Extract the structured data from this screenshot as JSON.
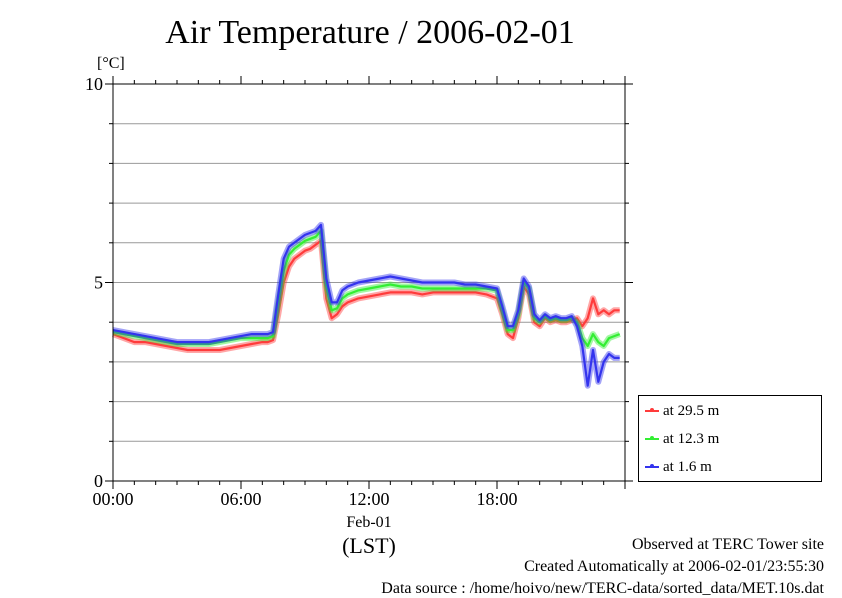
{
  "title": "Air Temperature / 2006-02-01",
  "chart_data": {
    "type": "line",
    "y_unit": "[°C]",
    "ylim": [
      0,
      10
    ],
    "y_ticks": [
      0,
      5,
      10
    ],
    "xlim": [
      0,
      24
    ],
    "x_ticks": [
      {
        "value": 0,
        "label": "00:00"
      },
      {
        "value": 6,
        "label": "06:00"
      },
      {
        "value": 12,
        "label": "12:00"
      },
      {
        "value": 18,
        "label": "18:00"
      }
    ],
    "x_date_label": "Feb-01",
    "xlabel": "(LST)",
    "grid": true,
    "legend_placement": "bottom-right, outside plot",
    "x": [
      0,
      0.5,
      1,
      1.5,
      2,
      2.5,
      3,
      3.5,
      4,
      4.5,
      5,
      5.5,
      6,
      6.5,
      7,
      7.25,
      7.5,
      7.75,
      8,
      8.25,
      8.5,
      8.75,
      9,
      9.25,
      9.5,
      9.75,
      10,
      10.25,
      10.5,
      10.75,
      11,
      11.5,
      12,
      12.5,
      13,
      13.5,
      14,
      14.5,
      15,
      15.5,
      16,
      16.5,
      17,
      17.5,
      18,
      18.25,
      18.5,
      18.75,
      19,
      19.25,
      19.5,
      19.75,
      20,
      20.25,
      20.5,
      20.75,
      21,
      21.25,
      21.5,
      21.75,
      22,
      22.25,
      22.5,
      22.75,
      23,
      23.25,
      23.5,
      23.75
    ],
    "series": [
      {
        "name": "at 29.5 m",
        "color": "#ff3b3b",
        "values": [
          3.7,
          3.6,
          3.5,
          3.5,
          3.45,
          3.4,
          3.35,
          3.3,
          3.3,
          3.3,
          3.3,
          3.35,
          3.4,
          3.45,
          3.5,
          3.5,
          3.55,
          4.2,
          5.0,
          5.4,
          5.6,
          5.7,
          5.8,
          5.85,
          5.95,
          6.05,
          4.6,
          4.1,
          4.2,
          4.4,
          4.5,
          4.6,
          4.65,
          4.7,
          4.75,
          4.75,
          4.75,
          4.7,
          4.75,
          4.75,
          4.75,
          4.75,
          4.75,
          4.7,
          4.6,
          4.2,
          3.7,
          3.6,
          4.1,
          4.9,
          4.7,
          4.0,
          3.9,
          4.1,
          4.0,
          4.05,
          4.0,
          4.0,
          4.05,
          4.1,
          3.9,
          4.1,
          4.6,
          4.2,
          4.3,
          4.2,
          4.3,
          4.3
        ]
      },
      {
        "name": "at 12.3 m",
        "color": "#33ee33",
        "values": [
          3.75,
          3.7,
          3.65,
          3.6,
          3.55,
          3.5,
          3.45,
          3.45,
          3.45,
          3.45,
          3.5,
          3.55,
          3.6,
          3.6,
          3.6,
          3.6,
          3.65,
          4.5,
          5.3,
          5.7,
          5.85,
          5.95,
          6.05,
          6.1,
          6.15,
          6.3,
          4.9,
          4.3,
          4.35,
          4.6,
          4.7,
          4.8,
          4.85,
          4.9,
          4.95,
          4.9,
          4.9,
          4.85,
          4.85,
          4.85,
          4.85,
          4.85,
          4.85,
          4.85,
          4.8,
          4.3,
          3.8,
          3.8,
          4.2,
          5.0,
          4.85,
          4.1,
          4.0,
          4.15,
          4.05,
          4.1,
          4.05,
          4.05,
          4.1,
          4.0,
          3.6,
          3.4,
          3.7,
          3.5,
          3.4,
          3.6,
          3.65,
          3.7
        ]
      },
      {
        "name": "at 1.6 m",
        "color": "#3333ee",
        "values": [
          3.8,
          3.75,
          3.7,
          3.65,
          3.6,
          3.55,
          3.5,
          3.5,
          3.5,
          3.5,
          3.55,
          3.6,
          3.65,
          3.7,
          3.7,
          3.7,
          3.75,
          4.7,
          5.6,
          5.9,
          6.0,
          6.1,
          6.2,
          6.25,
          6.3,
          6.45,
          5.1,
          4.5,
          4.5,
          4.8,
          4.9,
          5.0,
          5.05,
          5.1,
          5.15,
          5.1,
          5.05,
          5.0,
          5.0,
          5.0,
          5.0,
          4.95,
          4.95,
          4.9,
          4.85,
          4.4,
          3.9,
          3.9,
          4.3,
          5.1,
          4.9,
          4.2,
          4.05,
          4.2,
          4.1,
          4.15,
          4.1,
          4.1,
          4.15,
          3.9,
          3.4,
          2.4,
          3.3,
          2.5,
          3.0,
          3.2,
          3.1,
          3.1
        ]
      }
    ]
  },
  "legend": [
    {
      "label": "at 29.5 m",
      "color": "#ff3b3b"
    },
    {
      "label": "at 12.3 m",
      "color": "#33ee33"
    },
    {
      "label": "at 1.6 m",
      "color": "#3333ee"
    }
  ],
  "footer": {
    "site": "Observed at TERC Tower site",
    "created": "Created Automatically at 2006-02-01/23:55:30",
    "source": "Data source : /home/hoivo/new/TERC-data/sorted_data/MET.10s.dat"
  }
}
